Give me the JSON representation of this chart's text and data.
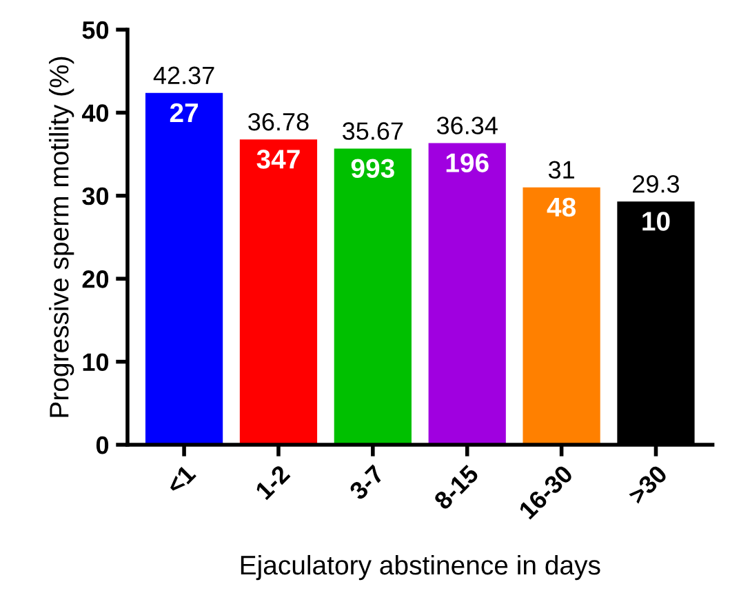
{
  "chart_data": {
    "type": "bar",
    "xlabel": "Ejaculatory abstinence in days",
    "ylabel": "Progressive sperm motility (%)",
    "categories": [
      "<1",
      "1-2",
      "3-7",
      "8-15",
      "16-30",
      ">30"
    ],
    "values": [
      42.37,
      36.78,
      35.67,
      36.34,
      31,
      29.3
    ],
    "colors": [
      "#0000ff",
      "#ff0000",
      "#00c000",
      "#a000e0",
      "#ff8000",
      "#000000"
    ],
    "data_labels": true,
    "annotations": [
      {
        "text": "27",
        "x": "<1",
        "y": 42.37
      },
      {
        "text": "347",
        "x": "1-2",
        "y": 36.78
      },
      {
        "text": "993",
        "x": "3-7",
        "y": 35.67
      },
      {
        "text": "196",
        "x": "8-15",
        "y": 36.34
      },
      {
        "text": "48",
        "x": "16-30",
        "y": 31
      },
      {
        "text": "10",
        "x": ">30",
        "y": 29.3
      }
    ],
    "ylim": [
      0,
      50
    ],
    "yticks": [
      0,
      10,
      20,
      30,
      40,
      50
    ],
    "grid": false,
    "legend": false
  }
}
